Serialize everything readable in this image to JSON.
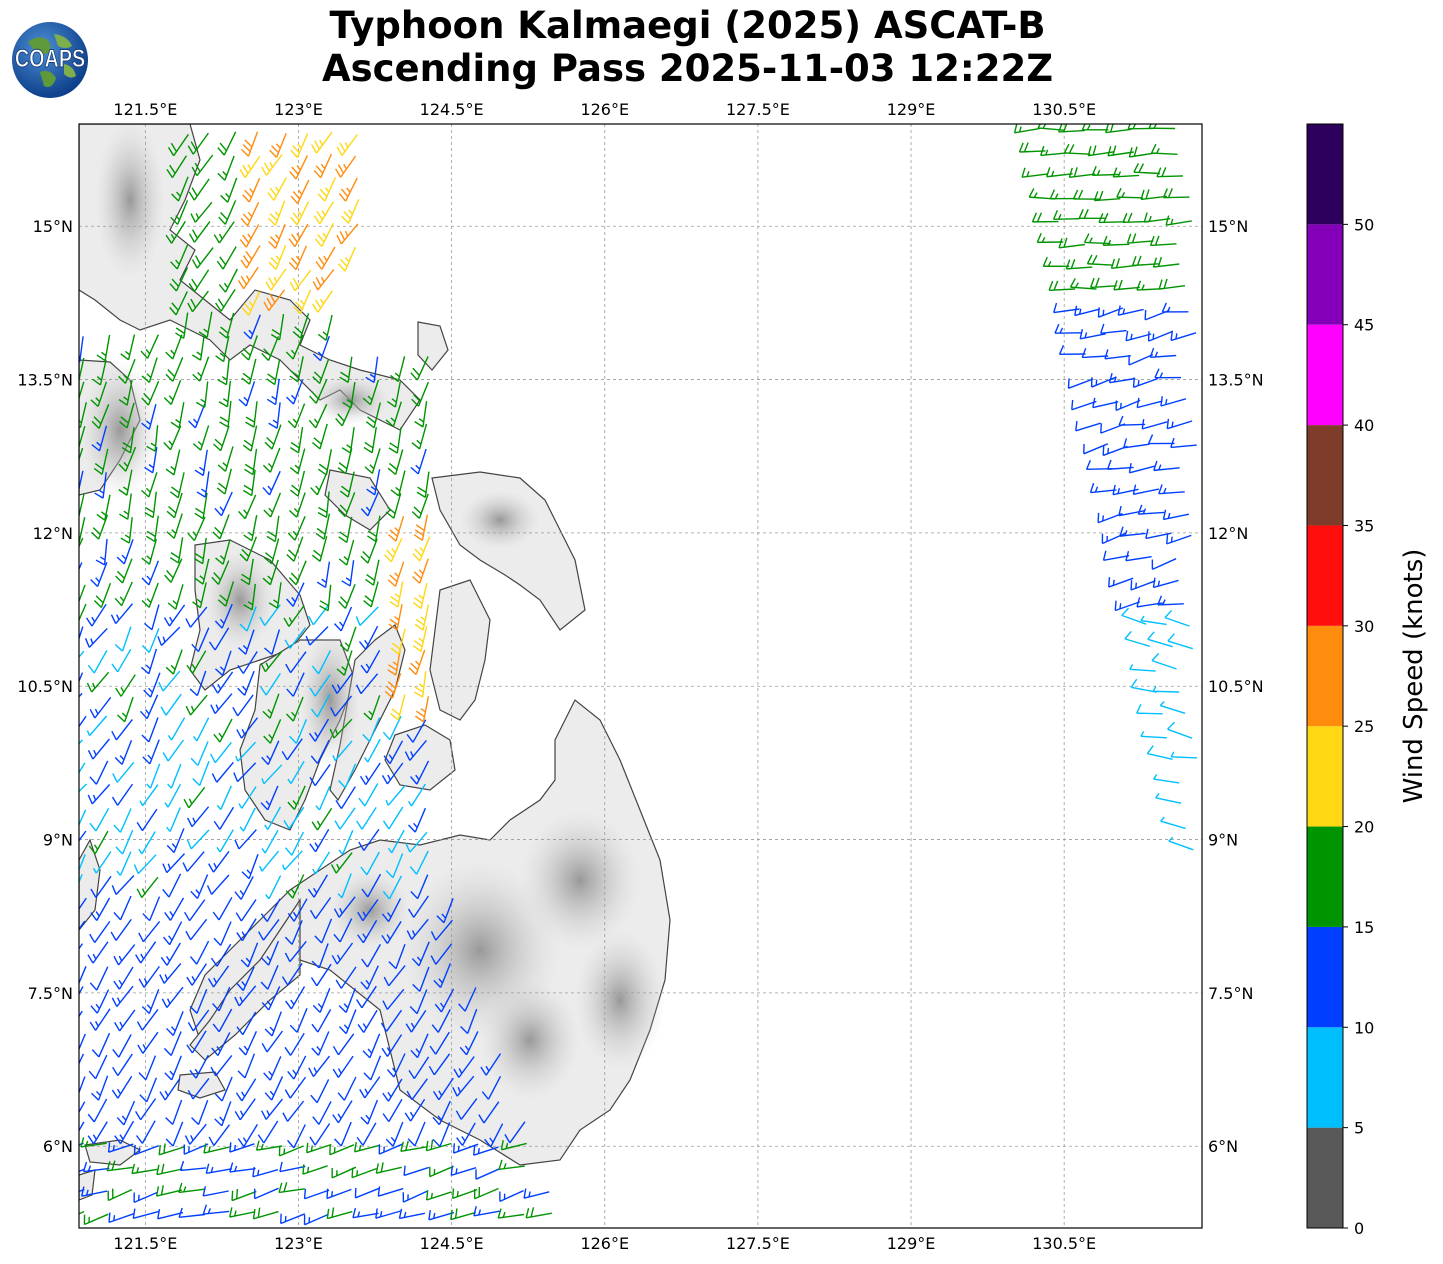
{
  "title_line1": "Typhoon Kalmaegi (2025) ASCAT-B",
  "title_line2": "Ascending Pass 2025-11-03 12:22Z",
  "logo_text": "COAPS",
  "map": {
    "lon_range": [
      120.85,
      131.85
    ],
    "lat_range": [
      5.2,
      16.0
    ],
    "lon_ticks": [
      "121.5°E",
      "123°E",
      "124.5°E",
      "126°E",
      "127.5°E",
      "129°E",
      "130.5°E"
    ],
    "lat_ticks": [
      "15°N",
      "13.5°N",
      "12°N",
      "10.5°N",
      "9°N",
      "7.5°N",
      "6°N"
    ],
    "gridlines": true,
    "background": "land shaded grayscale terrain, ocean white"
  },
  "colorbar": {
    "label": "Wind Speed (knots)",
    "tick_labels": [
      "0",
      "5",
      "10",
      "15",
      "20",
      "25",
      "30",
      "35",
      "40",
      "45",
      "50"
    ],
    "bins": [
      {
        "range": [
          0,
          5
        ],
        "color": "#595959"
      },
      {
        "range": [
          5,
          10
        ],
        "color": "#00bfff"
      },
      {
        "range": [
          10,
          15
        ],
        "color": "#003fff"
      },
      {
        "range": [
          15,
          20
        ],
        "color": "#009400"
      },
      {
        "range": [
          20,
          25
        ],
        "color": "#ffd712"
      },
      {
        "range": [
          25,
          30
        ],
        "color": "#ff8c0d"
      },
      {
        "range": [
          30,
          35
        ],
        "color": "#ff0d0d"
      },
      {
        "range": [
          35,
          40
        ],
        "color": "#7f3c2a"
      },
      {
        "range": [
          40,
          45
        ],
        "color": "#ff00ff"
      },
      {
        "range": [
          45,
          50
        ],
        "color": "#8400b8"
      },
      {
        "range": [
          50,
          55
        ],
        "color": "#2e005e"
      }
    ]
  }
}
